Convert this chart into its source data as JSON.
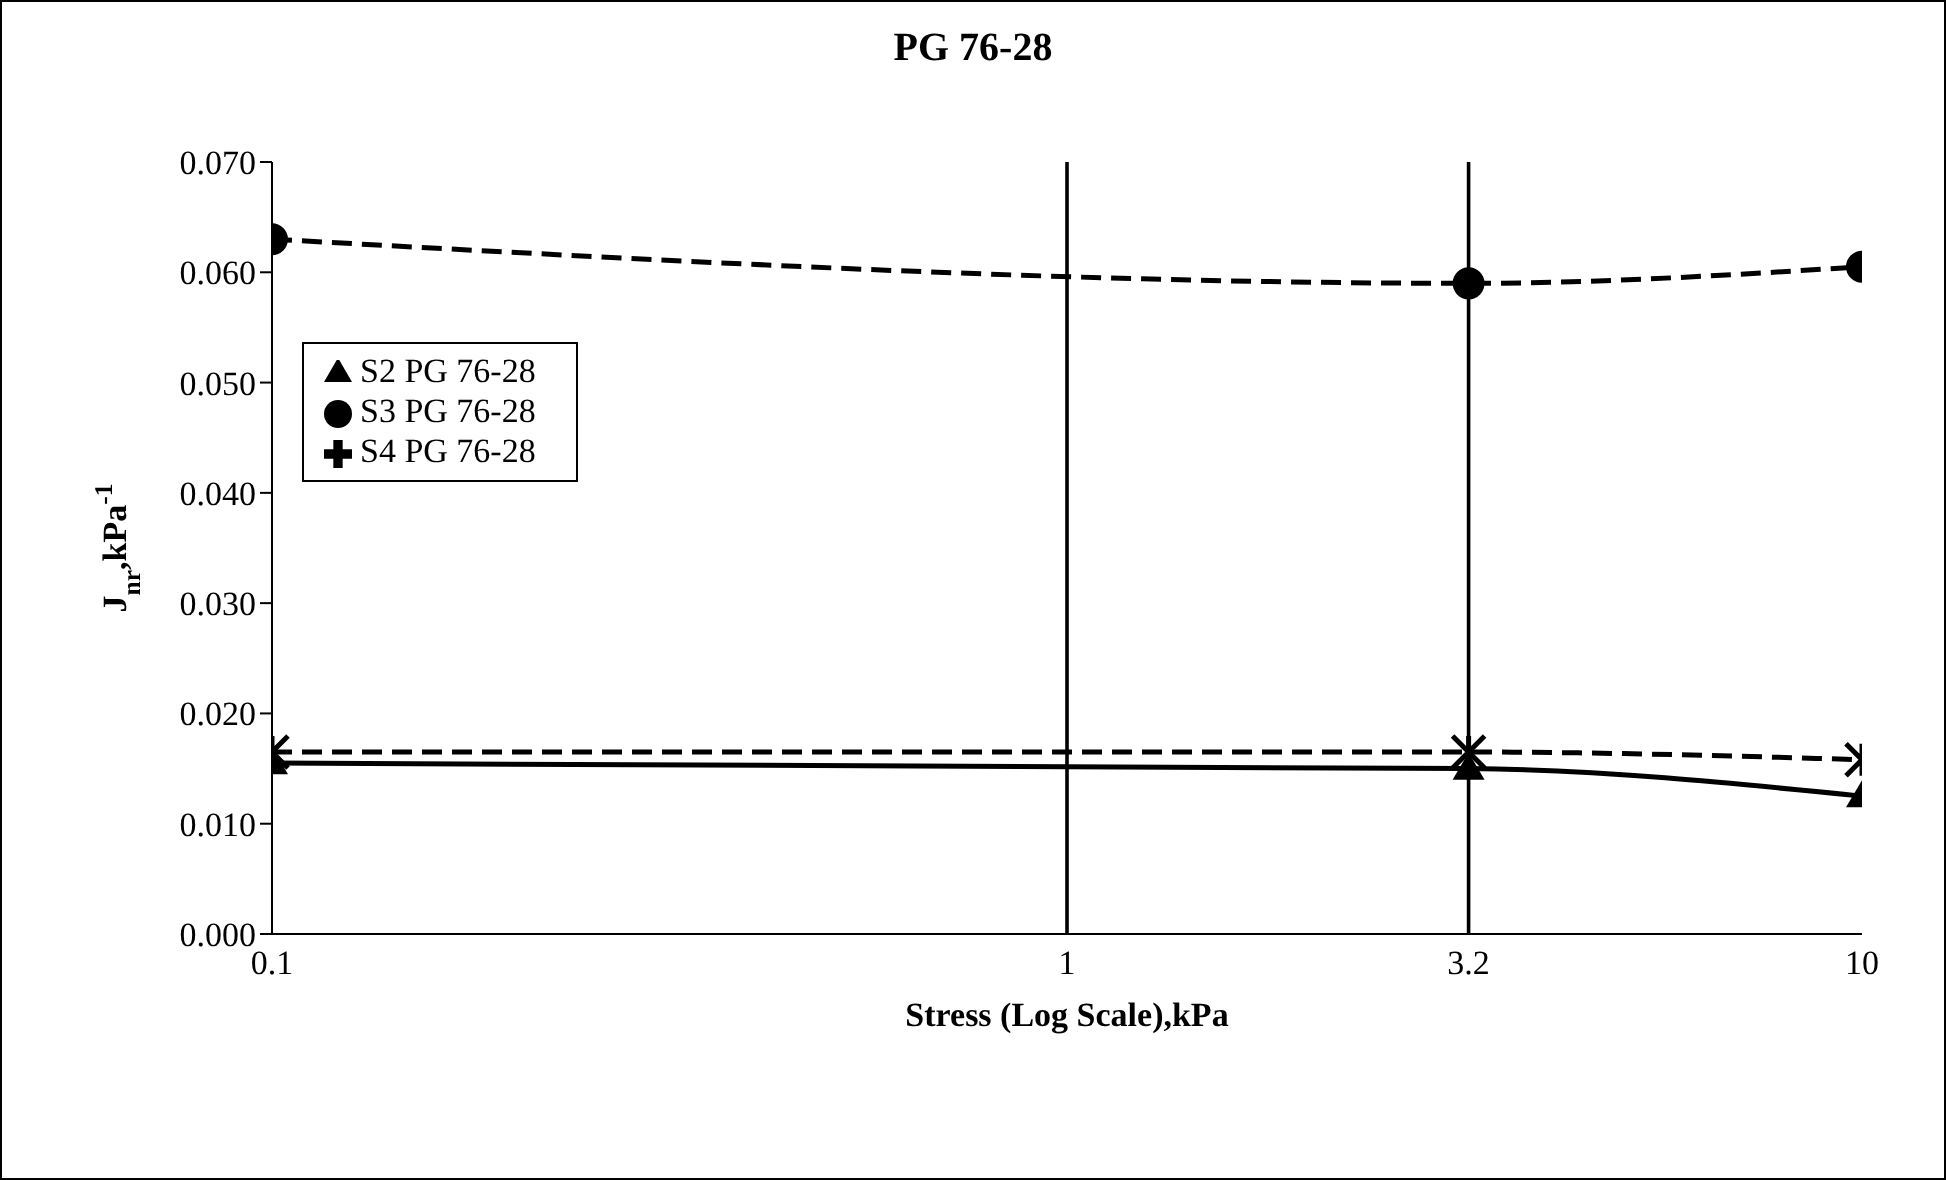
{
  "chart_data": {
    "type": "line",
    "title": "PG 76-28",
    "xlabel": "Stress (Log Scale),kPa",
    "ylabel": "J$_{nr}$,kPa$^{-1}$",
    "x": [
      0.1,
      3.2,
      10
    ],
    "log": "x",
    "xlim": [
      0.1,
      10
    ],
    "xticks": [
      0.1,
      1,
      3.2,
      10
    ],
    "ylim": [
      0,
      0.07
    ],
    "yticks": [
      {
        "value": 0,
        "label": "0.000"
      },
      {
        "value": 0.01,
        "label": "0.010"
      },
      {
        "value": 0.02,
        "label": "0.020"
      },
      {
        "value": 0.03,
        "label": "0.030"
      },
      {
        "value": 0.04,
        "label": "0.040"
      },
      {
        "value": 0.05,
        "label": "0.050"
      },
      {
        "value": 0.06,
        "label": "0.060"
      },
      {
        "value": 0.07,
        "label": "0.070"
      }
    ],
    "legend": "left",
    "ref_lines": [
      {
        "axis": "x",
        "value": 1
      },
      {
        "axis": "x",
        "value": 3.2
      }
    ],
    "series": [
      {
        "name": "S2 PG 76-28",
        "color": "#000000",
        "values": [
          0.0155,
          0.015,
          0.0125
        ],
        "marker": "triangle",
        "line_style": "solid"
      },
      {
        "name": "S3 PG 76-28",
        "color": "#000000",
        "values": [
          0.063,
          0.059,
          0.0605
        ],
        "marker": "circle",
        "line_style": "dashed"
      },
      {
        "name": "S4 PG 76-28",
        "color": "#000000",
        "values": [
          0.0165,
          0.0165,
          0.0158
        ],
        "marker": "cross",
        "line_style": "dashed"
      }
    ]
  }
}
